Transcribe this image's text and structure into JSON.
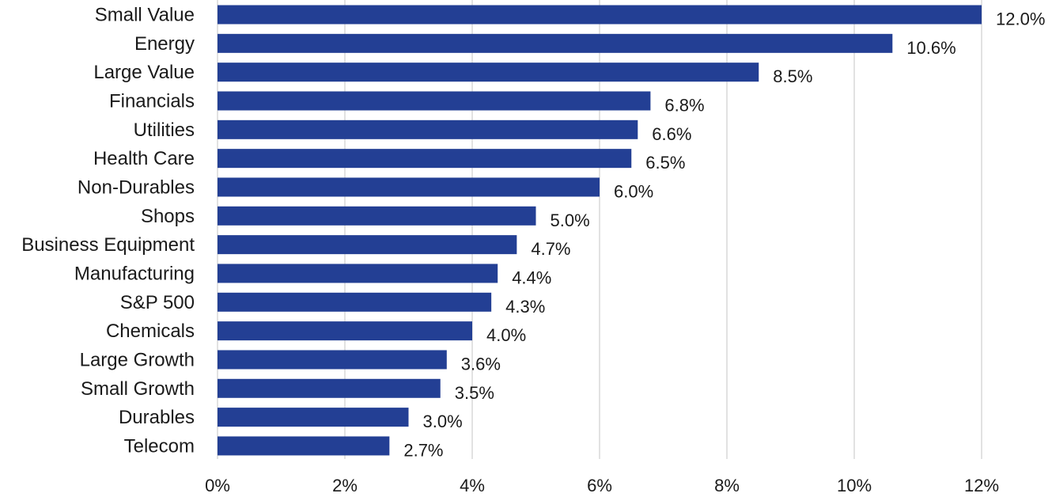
{
  "chart_data": {
    "type": "bar",
    "orientation": "horizontal",
    "categories": [
      "Small Value",
      "Energy",
      "Large Value",
      "Financials",
      "Utilities",
      "Health Care",
      "Non-Durables",
      "Shops",
      "Business Equipment",
      "Manufacturing",
      "S&P 500",
      "Chemicals",
      "Large Growth",
      "Small Growth",
      "Durables",
      "Telecom"
    ],
    "values": [
      12.0,
      10.6,
      8.5,
      6.8,
      6.6,
      6.5,
      6.0,
      5.0,
      4.7,
      4.4,
      4.3,
      4.0,
      3.6,
      3.5,
      3.0,
      2.7
    ],
    "value_labels": [
      "12.0%",
      "10.6%",
      "8.5%",
      "6.8%",
      "6.6%",
      "6.5%",
      "6.0%",
      "5.0%",
      "4.7%",
      "4.4%",
      "4.3%",
      "4.0%",
      "3.6%",
      "3.5%",
      "3.0%",
      "2.7%"
    ],
    "xlim": [
      0,
      12
    ],
    "x_ticks": [
      0,
      2,
      4,
      6,
      8,
      10,
      12
    ],
    "x_tick_labels": [
      "0%",
      "2%",
      "4%",
      "6%",
      "8%",
      "10%",
      "12%"
    ],
    "title": "",
    "xlabel": "",
    "ylabel": "",
    "grid": "vertical",
    "legend": "none",
    "bar_color": "#233f94",
    "grid_color": "#d9d9d9"
  }
}
